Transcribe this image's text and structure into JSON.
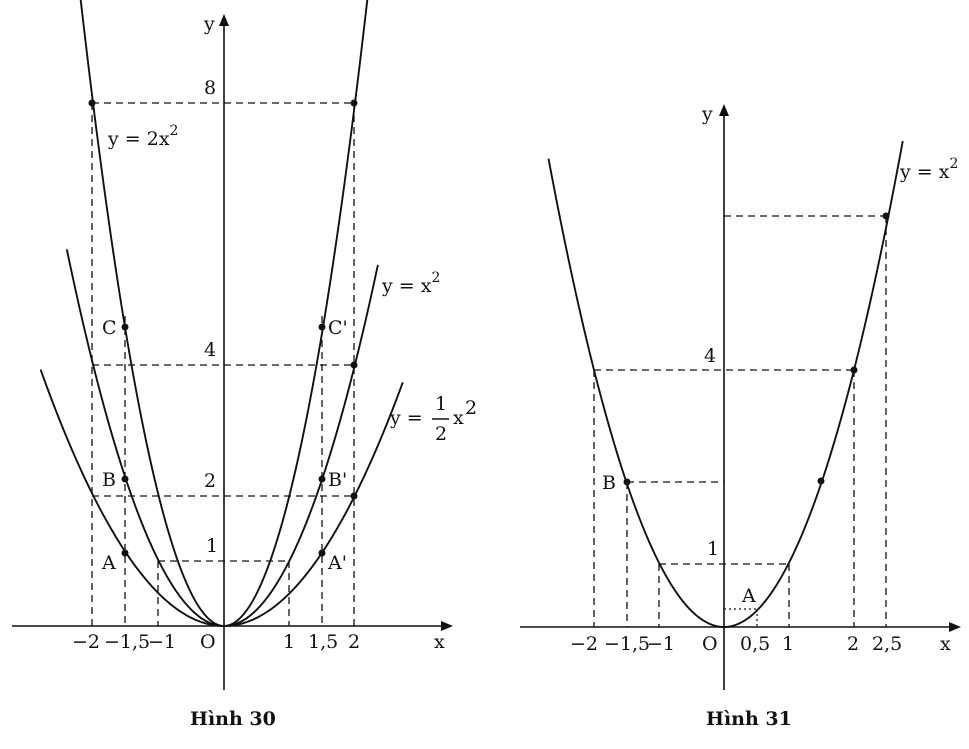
{
  "figures": [
    {
      "caption": "Hình 30",
      "axis_x": "x",
      "axis_y": "y",
      "origin": "O",
      "x_ticks": [
        {
          "v": -2,
          "label": "−2"
        },
        {
          "v": -1.5,
          "label": "−1,5"
        },
        {
          "v": -1,
          "label": "−1"
        },
        {
          "v": 1,
          "label": "1"
        },
        {
          "v": 1.5,
          "label": "1,5"
        },
        {
          "v": 2,
          "label": "2"
        }
      ],
      "y_ticks": [
        {
          "v": 1,
          "label": "1"
        },
        {
          "v": 2,
          "label": "2"
        },
        {
          "v": 4,
          "label": "4"
        },
        {
          "v": 8,
          "label": "8"
        }
      ],
      "curves": [
        {
          "coef": 2,
          "label_y": "y = 2x",
          "label_exp": "2"
        },
        {
          "coef": 1,
          "label_y": "y = x",
          "label_exp": "2"
        },
        {
          "coef": 0.5,
          "label_y": "y = ",
          "label_num": "1",
          "label_den": "2",
          "label_x": "x",
          "label_exp": "2"
        }
      ],
      "points": [
        {
          "name": "A",
          "x": -1.5,
          "y": 1.125
        },
        {
          "name": "B",
          "x": -1.5,
          "y": 2.25
        },
        {
          "name": "C",
          "x": -1.5,
          "y": 4.5
        },
        {
          "name": "A'",
          "x": 1.5,
          "y": 1.125
        },
        {
          "name": "B'",
          "x": 1.5,
          "y": 2.25
        },
        {
          "name": "C'",
          "x": 1.5,
          "y": 4.5
        }
      ]
    },
    {
      "caption": "Hình 31",
      "axis_x": "x",
      "axis_y": "y",
      "origin": "O",
      "x_ticks": [
        {
          "v": -2,
          "label": "−2"
        },
        {
          "v": -1.5,
          "label": "−1,5"
        },
        {
          "v": -1,
          "label": "−1"
        },
        {
          "v": 0.5,
          "label": "0,5"
        },
        {
          "v": 1,
          "label": "1"
        },
        {
          "v": 2,
          "label": "2"
        },
        {
          "v": 2.5,
          "label": "2,5"
        }
      ],
      "y_ticks": [
        {
          "v": 1,
          "label": "1"
        },
        {
          "v": 4,
          "label": "4"
        }
      ],
      "curves": [
        {
          "coef": 1,
          "label_y": "y = x",
          "label_exp": "2"
        }
      ],
      "points": [
        {
          "name": "A",
          "x": 0.5,
          "y": 0.25
        },
        {
          "name": "B",
          "x": -1.5,
          "y": 2.25
        }
      ]
    }
  ]
}
